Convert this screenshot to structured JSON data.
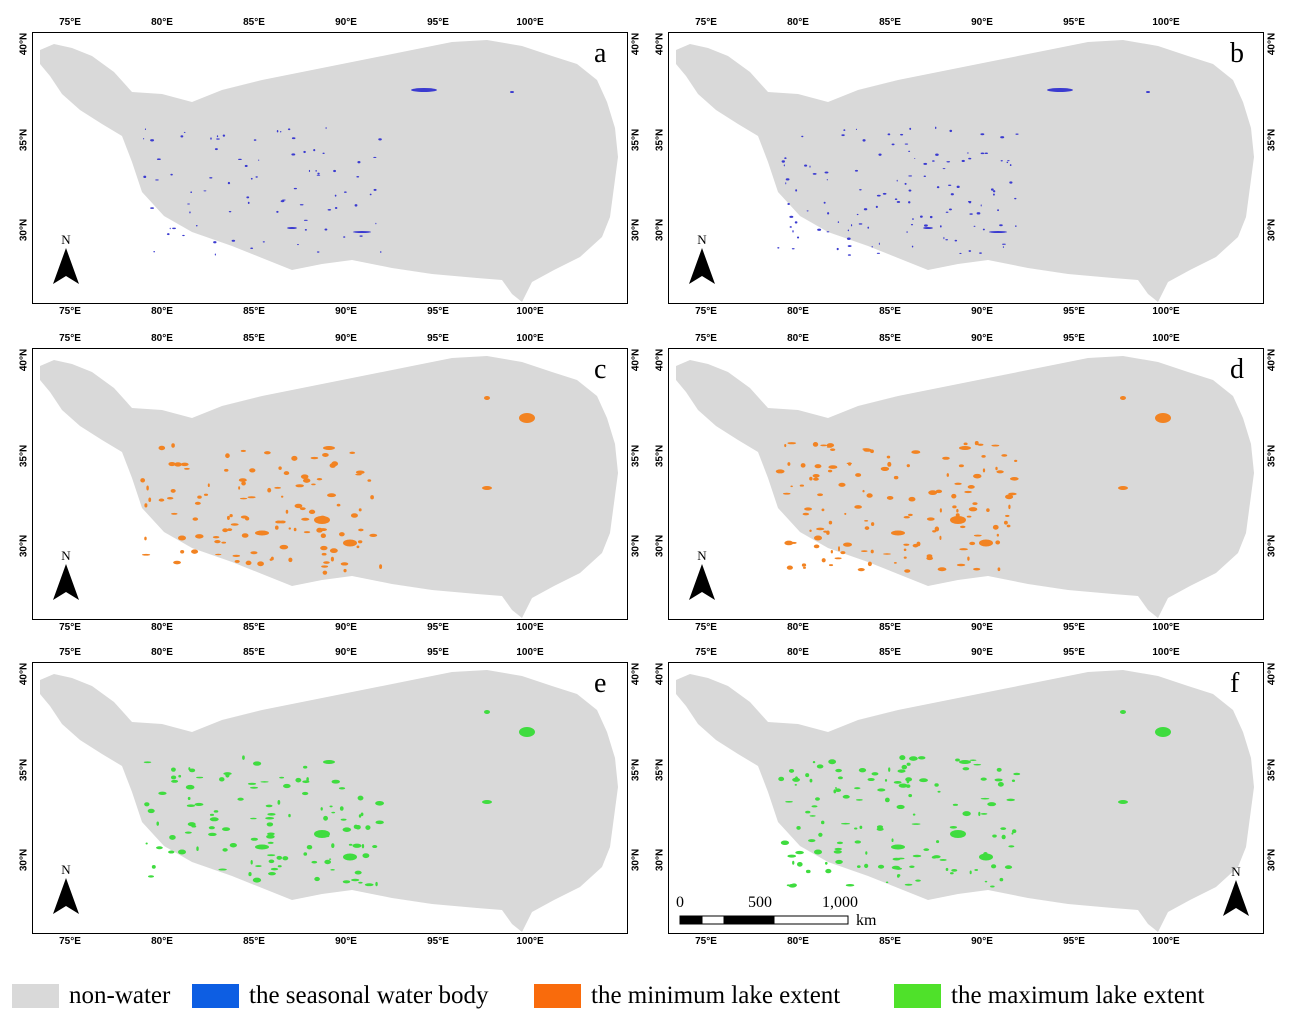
{
  "figure": {
    "x_ticks": [
      "75°E",
      "80°E",
      "85°E",
      "90°E",
      "95°E",
      "100°E"
    ],
    "y_ticks": [
      "40°N",
      "35°N",
      "30°N"
    ],
    "north_label": "N",
    "panels": [
      {
        "id": "a",
        "label": "a",
        "feature": "seasonal",
        "variant": 0
      },
      {
        "id": "b",
        "label": "b",
        "feature": "seasonal",
        "variant": 1
      },
      {
        "id": "c",
        "label": "c",
        "feature": "minimum",
        "variant": 0
      },
      {
        "id": "d",
        "label": "d",
        "feature": "minimum",
        "variant": 1
      },
      {
        "id": "e",
        "label": "e",
        "feature": "maximum",
        "variant": 0
      },
      {
        "id": "f",
        "label": "f",
        "feature": "maximum",
        "variant": 1
      }
    ],
    "scale_bar": {
      "labels": [
        "0",
        "500",
        "1,000"
      ],
      "unit": "km"
    }
  },
  "legend": [
    {
      "key": "non-water",
      "label": "non-water",
      "color": "#d9d9d9"
    },
    {
      "key": "seasonal",
      "label": "the seasonal water body",
      "color": "#0d5ee3"
    },
    {
      "key": "minimum",
      "label": "the minimum lake extent",
      "color": "#f96b0c"
    },
    {
      "key": "maximum",
      "label": "the maximum lake extent",
      "color": "#4fe12a"
    }
  ],
  "colors": {
    "land": "#d9d9d9",
    "seasonal_mark": "#3b3bd0",
    "minimum_mark": "#f28322",
    "maximum_mark": "#3fdc3f"
  }
}
